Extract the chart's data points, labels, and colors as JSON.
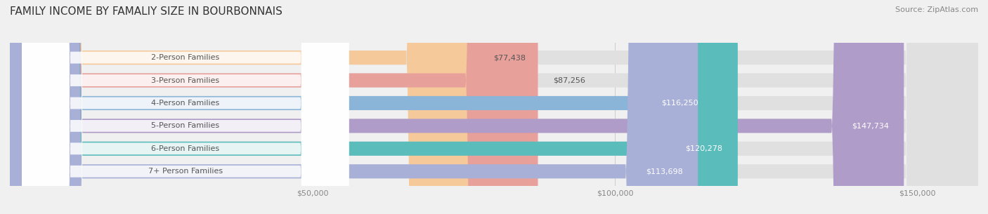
{
  "title": "FAMILY INCOME BY FAMALIY SIZE IN BOURBONNAIS",
  "source": "Source: ZipAtlas.com",
  "categories": [
    "2-Person Families",
    "3-Person Families",
    "4-Person Families",
    "5-Person Families",
    "6-Person Families",
    "7+ Person Families"
  ],
  "values": [
    77438,
    87256,
    116250,
    147734,
    120278,
    113698
  ],
  "bar_colors": [
    "#f5c99a",
    "#e8a09a",
    "#8ab4d8",
    "#b09cc8",
    "#5bbcbc",
    "#a8b0d8"
  ],
  "label_colors": [
    "#555555",
    "#555555",
    "#ffffff",
    "#ffffff",
    "#ffffff",
    "#ffffff"
  ],
  "xlim": [
    0,
    160000
  ],
  "xticks": [
    0,
    50000,
    100000,
    150000
  ],
  "xtick_labels": [
    "$50,000",
    "$100,000",
    "$150,000"
  ],
  "background_color": "#f0f0f0",
  "bar_background": "#e0e0e0",
  "title_fontsize": 11,
  "source_fontsize": 8,
  "label_fontsize": 8,
  "value_fontsize": 8,
  "figsize": [
    14.06,
    3.05
  ],
  "dpi": 100
}
